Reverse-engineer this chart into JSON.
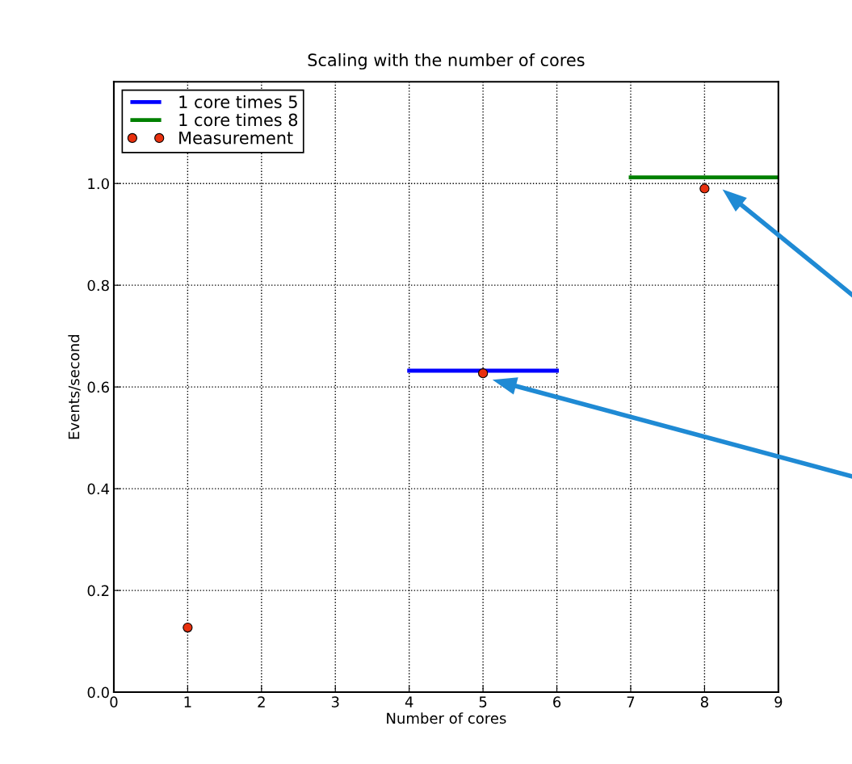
{
  "chart_data": {
    "type": "line",
    "title": "Scaling with the number of cores",
    "xlabel": "Number of cores",
    "ylabel": "Events/second",
    "series": [
      {
        "name": "1 core times 5",
        "color": "#0000ff",
        "x": [
          4,
          6
        ],
        "values": [
          0.632,
          0.632
        ],
        "marker": "none",
        "line_style": "solid"
      },
      {
        "name": "1 core times 8",
        "color": "#008000",
        "x": [
          7,
          9
        ],
        "values": [
          1.012,
          1.012
        ],
        "marker": "none",
        "line_style": "solid"
      },
      {
        "name": "Measurement",
        "type": "scatter",
        "color": "#e8300e",
        "x": [
          1,
          5,
          8
        ],
        "values": [
          0.127,
          0.627,
          0.99
        ],
        "marker": "circle"
      }
    ],
    "xlim": [
      0,
      9
    ],
    "xticks": [
      0,
      1,
      2,
      3,
      4,
      5,
      6,
      7,
      8,
      9
    ],
    "ylim": [
      0,
      1.2
    ],
    "yticks": [
      {
        "value": 0,
        "label": "0.0"
      },
      0.2,
      0.4,
      0.6,
      0.8,
      {
        "value": 1,
        "label": "1.0"
      }
    ],
    "grid": true,
    "legend": "top left"
  }
}
